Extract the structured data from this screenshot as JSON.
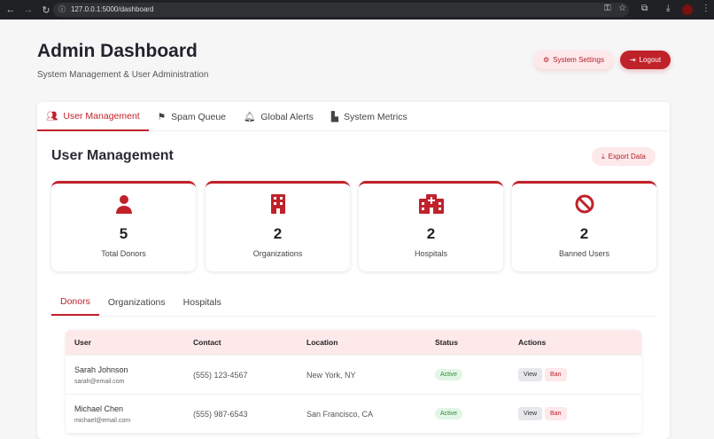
{
  "browser": {
    "url": "127.0.0.1:5000/dashboard"
  },
  "header": {
    "title": "Admin Dashboard",
    "subtitle": "System Management & User Administration",
    "system_settings": "System Settings",
    "logout": "Logout"
  },
  "tabs": [
    {
      "label": "User Management",
      "icon": "users-icon"
    },
    {
      "label": "Spam Queue",
      "icon": "flag-icon"
    },
    {
      "label": "Global Alerts",
      "icon": "bell-icon"
    },
    {
      "label": "System Metrics",
      "icon": "chart-icon"
    }
  ],
  "section": {
    "title": "User Management",
    "export": "Export Data"
  },
  "stats": [
    {
      "value": "5",
      "label": "Total Donors",
      "icon": "user-icon"
    },
    {
      "value": "2",
      "label": "Organizations",
      "icon": "building-icon"
    },
    {
      "value": "2",
      "label": "Hospitals",
      "icon": "hospital-icon"
    },
    {
      "value": "2",
      "label": "Banned Users",
      "icon": "ban-icon"
    }
  ],
  "subtabs": [
    "Donors",
    "Organizations",
    "Hospitals"
  ],
  "table": {
    "headers": [
      "User",
      "Contact",
      "Location",
      "Status",
      "Actions"
    ],
    "rows": [
      {
        "name": "Sarah Johnson",
        "email": "sarah@email.com",
        "contact": "(555) 123-4567",
        "location": "New York, NY",
        "status": "Active",
        "view": "View",
        "ban": "Ban"
      },
      {
        "name": "Michael Chen",
        "email": "michael@email.com",
        "contact": "(555) 987-6543",
        "location": "San Francisco, CA",
        "status": "Active",
        "view": "View",
        "ban": "Ban"
      }
    ]
  },
  "colors": {
    "accent": "#c0222a",
    "accent_light": "#fde8ea",
    "success": "#2f8a3e"
  }
}
